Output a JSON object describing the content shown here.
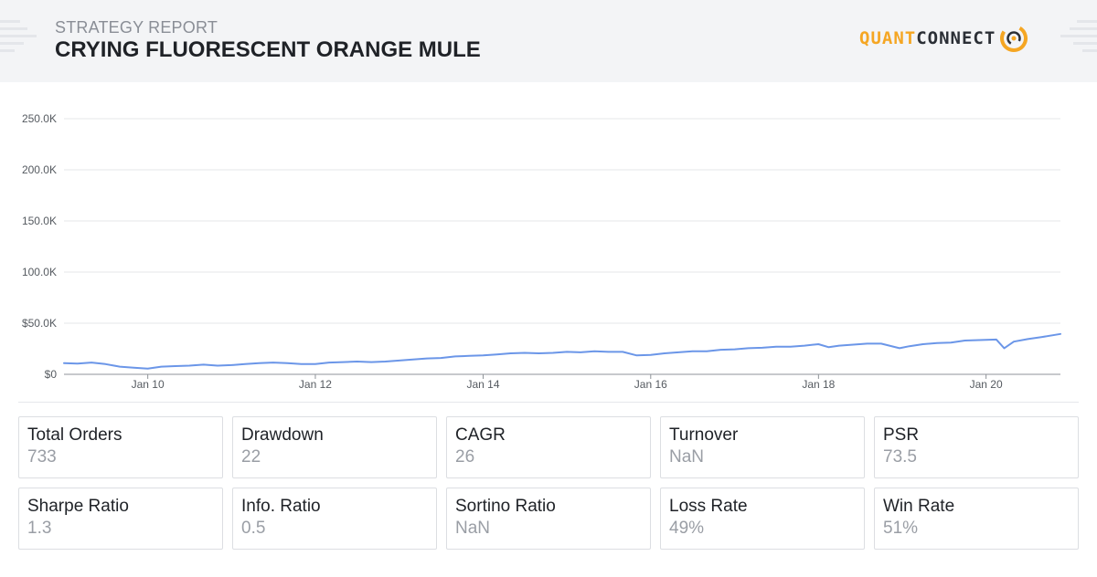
{
  "header": {
    "subtitle": "STRATEGY REPORT",
    "title": "CRYING FLUORESCENT ORANGE MULE",
    "logo_quant": "QUANT",
    "logo_connect": "CONNECT"
  },
  "colors": {
    "line": "#6b96e8",
    "grid": "#e6e7ea",
    "axis": "#555a60",
    "accent": "#f5a623"
  },
  "chart_data": {
    "type": "line",
    "title": "",
    "xlabel": "",
    "ylabel": "",
    "ylim": [
      0,
      250000
    ],
    "xlim": [
      "2009-01-01",
      "2020-11-20"
    ],
    "y_ticks": [
      0,
      50000,
      100000,
      150000,
      200000,
      250000
    ],
    "y_tick_labels": [
      "$0",
      "$50.0K",
      "100.0K",
      "150.0K",
      "200.0K",
      "250.0K"
    ],
    "x_ticks": [
      "2010-01-01",
      "2012-01-01",
      "2014-01-01",
      "2016-01-01",
      "2018-01-01",
      "2020-01-01"
    ],
    "x_tick_labels": [
      "Jan 10",
      "Jan 12",
      "Jan 14",
      "Jan 16",
      "Jan 18",
      "Jan 20"
    ],
    "grid": true,
    "legend": "none",
    "series": [
      {
        "x": [
          "2009-01-01",
          "2009-03-01",
          "2009-05-01",
          "2009-07-01",
          "2009-09-01",
          "2009-11-01",
          "2010-01-01",
          "2010-03-01",
          "2010-05-01",
          "2010-07-01",
          "2010-09-01",
          "2010-11-01",
          "2011-01-01",
          "2011-03-01",
          "2011-05-01",
          "2011-07-01",
          "2011-09-01",
          "2011-11-01",
          "2012-01-01",
          "2012-03-01",
          "2012-05-01",
          "2012-07-01",
          "2012-09-01",
          "2012-11-01",
          "2013-01-01",
          "2013-03-01",
          "2013-05-01",
          "2013-07-01",
          "2013-09-01",
          "2013-11-01",
          "2014-01-01",
          "2014-03-01",
          "2014-05-01",
          "2014-07-01",
          "2014-09-01",
          "2014-11-01",
          "2015-01-01",
          "2015-03-01",
          "2015-05-01",
          "2015-07-01",
          "2015-09-01",
          "2015-11-01",
          "2016-01-01",
          "2016-03-01",
          "2016-05-01",
          "2016-07-01",
          "2016-09-01",
          "2016-11-01",
          "2017-01-01",
          "2017-03-01",
          "2017-05-01",
          "2017-07-01",
          "2017-09-01",
          "2017-11-01",
          "2018-01-01",
          "2018-02-15",
          "2018-04-01",
          "2018-06-01",
          "2018-08-01",
          "2018-10-01",
          "2018-12-20",
          "2019-02-01",
          "2019-04-01",
          "2019-06-01",
          "2019-08-01",
          "2019-10-01",
          "2019-12-01",
          "2020-02-15",
          "2020-03-20",
          "2020-05-01",
          "2020-07-01",
          "2020-09-01",
          "2020-11-20"
        ],
        "y": [
          11000,
          10500,
          11500,
          10000,
          7500,
          6500,
          5500,
          7500,
          8000,
          8500,
          9500,
          8500,
          9000,
          10000,
          11000,
          11500,
          11000,
          10000,
          10000,
          11500,
          12000,
          12500,
          12000,
          12500,
          13500,
          14500,
          15500,
          16000,
          17500,
          18000,
          18500,
          19500,
          20500,
          21000,
          20500,
          21000,
          22000,
          21500,
          22500,
          22000,
          22000,
          18500,
          19000,
          20500,
          21500,
          22500,
          22500,
          24000,
          24500,
          25500,
          26000,
          27000,
          27000,
          28000,
          29500,
          26500,
          28000,
          29000,
          30000,
          30000,
          25500,
          27500,
          29500,
          30500,
          31000,
          33000,
          33500,
          34000,
          25500,
          32000,
          34500,
          36500,
          39500
        ]
      }
    ]
  },
  "stats": [
    {
      "label": "Total Orders",
      "value": "733"
    },
    {
      "label": "Drawdown",
      "value": "22"
    },
    {
      "label": "CAGR",
      "value": "26"
    },
    {
      "label": "Turnover",
      "value": "NaN"
    },
    {
      "label": "PSR",
      "value": "73.5"
    },
    {
      "label": "Sharpe Ratio",
      "value": "1.3"
    },
    {
      "label": "Info. Ratio",
      "value": "0.5"
    },
    {
      "label": "Sortino Ratio",
      "value": "NaN"
    },
    {
      "label": "Loss Rate",
      "value": "49%"
    },
    {
      "label": "Win Rate",
      "value": "51%"
    }
  ]
}
